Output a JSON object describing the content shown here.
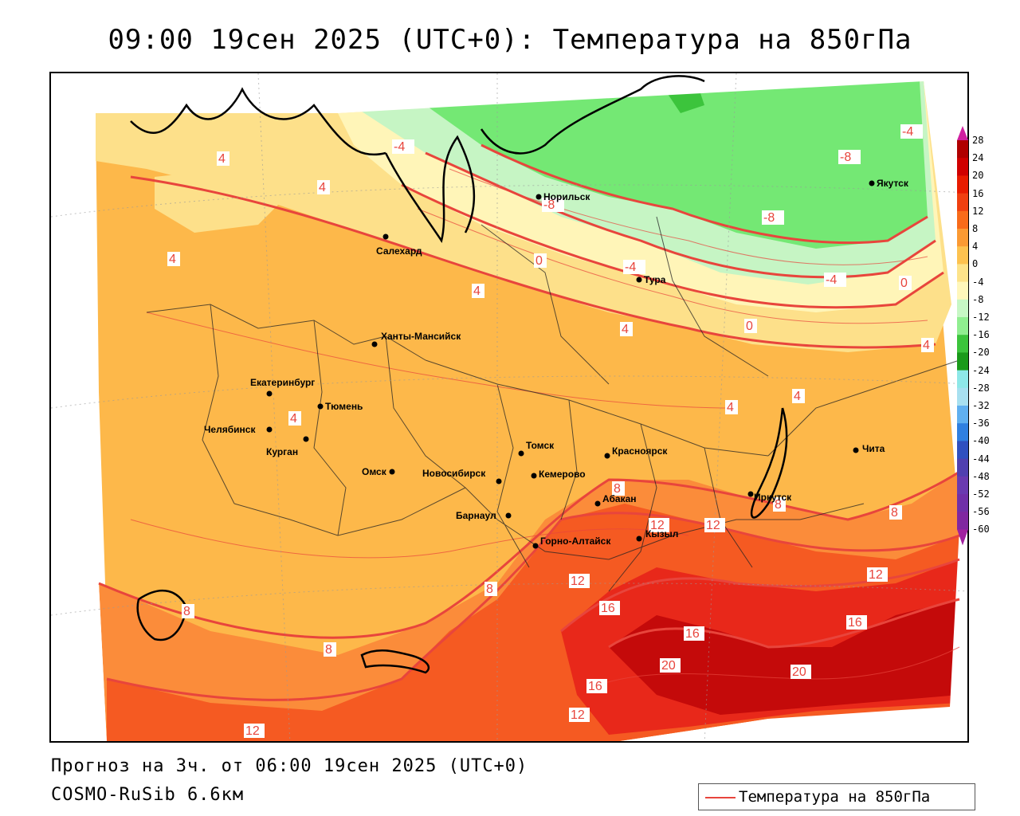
{
  "header": {
    "title": "09:00 19сен 2025 (UTC+0): Температура на 850гПа"
  },
  "footer": {
    "forecast": "Прогноз на 3ч. от 06:00 19сен 2025 (UTC+0)",
    "model": "COSMO-RuSib 6.6км"
  },
  "legend": {
    "label": "Температура на 850гПа",
    "line_color": "#e8453c"
  },
  "colorbar": {
    "values": [
      "28",
      "24",
      "20",
      "16",
      "12",
      "8",
      "4",
      "0",
      "-4",
      "-8",
      "-12",
      "-16",
      "-20",
      "-24",
      "-28",
      "-32",
      "-36",
      "-40",
      "-44",
      "-48",
      "-52",
      "-56",
      "-60"
    ],
    "colors": [
      "#b00000",
      "#d00000",
      "#e81c00",
      "#f04010",
      "#f86b1a",
      "#fb9a33",
      "#fdc24f",
      "#fde38a",
      "#fff7bb",
      "#c7f7c5",
      "#90ee90",
      "#3cc43c",
      "#1a9a1a",
      "#8ee8e8",
      "#a8e0f0",
      "#60b0f0",
      "#3080e0",
      "#3050c0",
      "#5040b0",
      "#6a3ab0",
      "#7030a8",
      "#8028a0",
      "#a020a0"
    ]
  },
  "cities": [
    {
      "name": "Норильск"
    },
    {
      "name": "Якутск"
    },
    {
      "name": "Салехард"
    },
    {
      "name": "Тура"
    },
    {
      "name": "Ханты-Мансийск"
    },
    {
      "name": "Екатеринбург"
    },
    {
      "name": "Тюмень"
    },
    {
      "name": "Челябинск"
    },
    {
      "name": "Курган"
    },
    {
      "name": "Омск"
    },
    {
      "name": "Томск"
    },
    {
      "name": "Красноярск"
    },
    {
      "name": "Новосибирск"
    },
    {
      "name": "Кемерово"
    },
    {
      "name": "Абакан"
    },
    {
      "name": "Барнаул"
    },
    {
      "name": "Иркутск"
    },
    {
      "name": "Чита"
    },
    {
      "name": "Горно-Алтайск"
    },
    {
      "name": "Кызыл"
    }
  ],
  "isolines": [
    {
      "value": "-4"
    },
    {
      "value": "-4"
    },
    {
      "value": "-8"
    },
    {
      "value": "-8"
    },
    {
      "value": "-8"
    },
    {
      "value": "-4"
    },
    {
      "value": "-4"
    },
    {
      "value": "0"
    },
    {
      "value": "0"
    },
    {
      "value": "0"
    },
    {
      "value": "4"
    },
    {
      "value": "4"
    },
    {
      "value": "4"
    },
    {
      "value": "4"
    },
    {
      "value": "4"
    },
    {
      "value": "4"
    },
    {
      "value": "4"
    },
    {
      "value": "4"
    },
    {
      "value": "4"
    },
    {
      "value": "8"
    },
    {
      "value": "8"
    },
    {
      "value": "8"
    },
    {
      "value": "8"
    },
    {
      "value": "8"
    },
    {
      "value": "8"
    },
    {
      "value": "12"
    },
    {
      "value": "12"
    },
    {
      "value": "12"
    },
    {
      "value": "12"
    },
    {
      "value": "12"
    },
    {
      "value": "12"
    },
    {
      "value": "16"
    },
    {
      "value": "16"
    },
    {
      "value": "16"
    },
    {
      "value": "16"
    },
    {
      "value": "20"
    },
    {
      "value": "20"
    }
  ]
}
